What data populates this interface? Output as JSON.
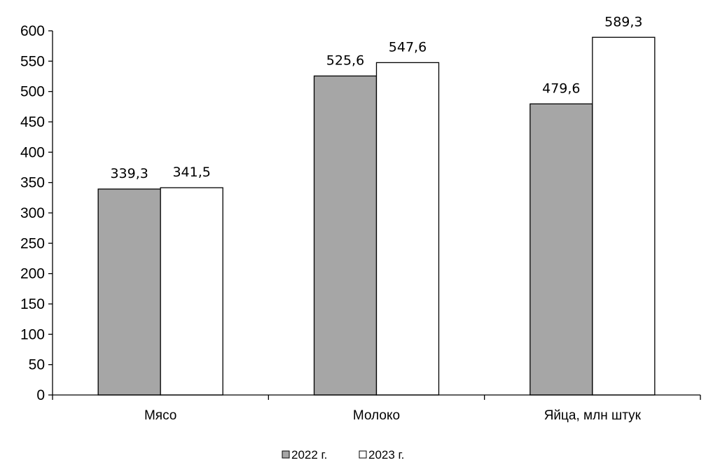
{
  "chart_data": {
    "type": "bar",
    "categories": [
      "Мясо",
      "Молоко",
      "Яйца, млн штук"
    ],
    "series": [
      {
        "name": "2022 г.",
        "values": [
          339.3,
          525.6,
          479.6
        ],
        "color": "#a6a6a6"
      },
      {
        "name": "2023 г.",
        "values": [
          341.5,
          547.6,
          589.3
        ],
        "color": "#ffffff"
      }
    ],
    "data_labels": [
      [
        "339,3",
        "525,6",
        "479,6"
      ],
      [
        "341,5",
        "547,6",
        "589,3"
      ]
    ],
    "yticks": [
      "0",
      "50",
      "100",
      "150",
      "200",
      "250",
      "300",
      "350",
      "400",
      "450",
      "500",
      "550",
      "600"
    ],
    "ylim": [
      0,
      600
    ],
    "title": "",
    "xlabel": "",
    "ylabel": "",
    "grid": false,
    "legend_position": "bottom-center"
  }
}
